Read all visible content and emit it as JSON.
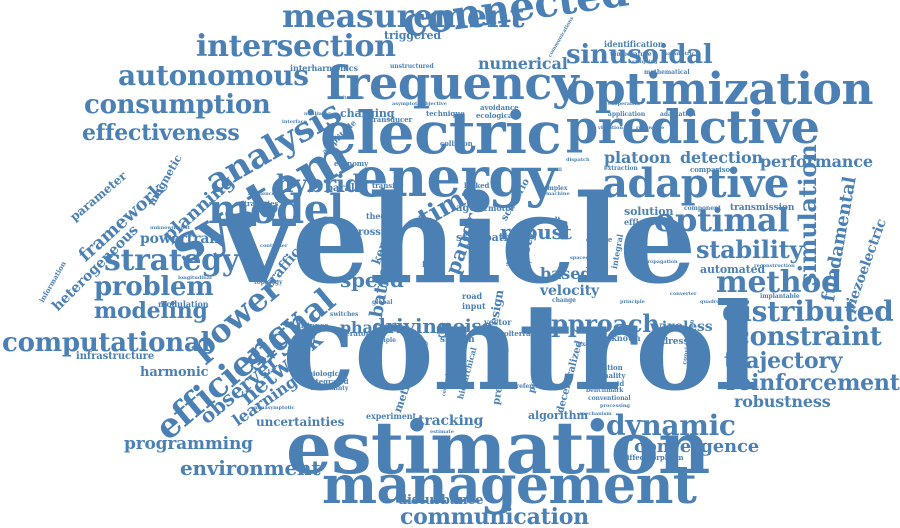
{
  "accent_color": "#4a80b4",
  "words": {
    "vehicle": "vehicle",
    "control": "control",
    "estimation": "estimation",
    "management": "management",
    "electric": "electric",
    "energy": "energy",
    "frequency": "frequency",
    "predictive": "predictive",
    "optimization": "optimization",
    "connected": "connected",
    "measurement": "measurement",
    "intersection": "intersection",
    "autonomous": "autonomous",
    "consumption": "consumption",
    "effectiveness": "effectiveness",
    "system": "system",
    "analysis": "analysis",
    "model": "model",
    "adaptive": "adaptive",
    "optimal": "optimal",
    "method": "method",
    "distributed": "distributed",
    "constraint": "constraint",
    "trajectory": "trajectory",
    "reinforcement": "reinforcement",
    "robustness": "robustness",
    "dynamic": "dynamic",
    "convergence": "convergence",
    "communication": "communication",
    "disturbance": "disturbance",
    "environment": "environment",
    "programming": "programming",
    "learning": "learning",
    "network": "network",
    "observer": "observer",
    "efficiency": "efficiency",
    "computational": "computational",
    "modeling": "modeling",
    "problem": "problem",
    "strategy": "strategy",
    "powertrain": "powertrain",
    "power": "power",
    "signal": "signal",
    "hybrid": "hybrid",
    "planning": "planning",
    "framework": "framework",
    "heterogeneous": "heterogeneous",
    "parameter": "parameter",
    "infrastructure": "infrastructure",
    "harmonic": "harmonic",
    "approach": "approach",
    "driving": "driving",
    "phase": "phase",
    "noise": "noise",
    "speed": "speed",
    "time": "time",
    "robust": "robust",
    "based": "based",
    "velocity": "velocity",
    "stability": "stability",
    "simulation": "simulation",
    "fundamental": "fundamental",
    "piezoelectric": "piezoelectric",
    "performance": "performance",
    "platoon": "platoon",
    "detection": "detection",
    "sinusoidal": "sinusoidal",
    "numerical": "numerical",
    "wireless": "wireless",
    "tracking": "tracking",
    "uncertainties": "uncertainties",
    "solution": "solution",
    "automated": "automated",
    "paper": "paper",
    "battery": "battery",
    "charging": "charging",
    "traffic": "traffic",
    "triggered": "triggered",
    "identification": "identification",
    "magnetic": "magnetic",
    "interharmonics": "interharmonics",
    "transmission": "transmission",
    "decentralized": "decentralized",
    "prediction": "prediction",
    "algorithm": "algorithm",
    "methodology": "methodology",
    "potential": "potential",
    "hierarchical": "hierarchical",
    "design": "design",
    "safety": "safety",
    "scenario": "scenario",
    "kernel": "kernel",
    "crossing": "crossing",
    "state": "state",
    "path": "path",
    "agent": "agent",
    "motor": "motor",
    "station": "station",
    "vector": "vector",
    "modulation": "modulation",
    "experiment": "experiment",
    "addresses": "addresses",
    "unknown": "unknown",
    "fuel": "fuel",
    "road": "road",
    "input": "input",
    "theory": "theory",
    "parallel": "parallel",
    "amplitude": "amplitude",
    "economy": "economy",
    "transfer": "transfer",
    "locked": "locked",
    "collision": "collision",
    "avoidance": "avoidance",
    "ecological": "ecological",
    "technique": "technique",
    "transducer": "transducer",
    "sensor": "sensor",
    "volterra": "volterra",
    "result": "result",
    "engine": "engine",
    "efficient": "efficient",
    "integral": "integral",
    "biological": "biological",
    "integrated": "integrated",
    "uncertainty": "uncertainty",
    "operator": "operator",
    "distance": "distance",
    "switches": "switches",
    "multiple": "multiple",
    "condition": "condition",
    "optimality": "optimality",
    "microgrid": "microgrid",
    "benchmark": "benchmark",
    "conventional": "conventional",
    "processing": "processing",
    "diffeomorphism": "diffeomorphism",
    "implantable": "implantable",
    "reconstruction": "reconstruction",
    "consideration": "consideration",
    "mathematical": "mathematical",
    "unstructured": "unstructured",
    "temperature": "temperature",
    "application": "application",
    "adaptation": "adaptation",
    "comparison": "comparison",
    "extraction": "extraction",
    "component": "component",
    "strategies": "strategies",
    "resilience": "resilience",
    "topology": "topology",
    "controller": "controller",
    "nonasymptotic": "nonasymptotic",
    "unknowninput": "unknowninput",
    "information": "information",
    "asymptotic": "asymptotic",
    "cooperative": "cooperative",
    "global": "global",
    "complex": "complex",
    "example": "example",
    "change": "change",
    "reference": "reference",
    "mechanism": "mechanism",
    "estimator": "estimator",
    "comprehensive": "comprehensive",
    "spacecraft": "spacecraft",
    "converter": "converter",
    "quadrotors": "quadrotors",
    "principle": "principle",
    "longitudinal": "longitudinal",
    "communications": "communications",
    "sampling": "sampling",
    "parametric": "parametric",
    "propagation": "propagation",
    "machine": "machine",
    "vibration": "vibration",
    "renewable": "renewable",
    "dispatch": "dispatch",
    "battery_cell": "cell",
    "architecture": "architecture",
    "nonlinear": "nonlinear",
    "objective": "objective",
    "interface": "interface",
    "estimate": "estimate"
  }
}
